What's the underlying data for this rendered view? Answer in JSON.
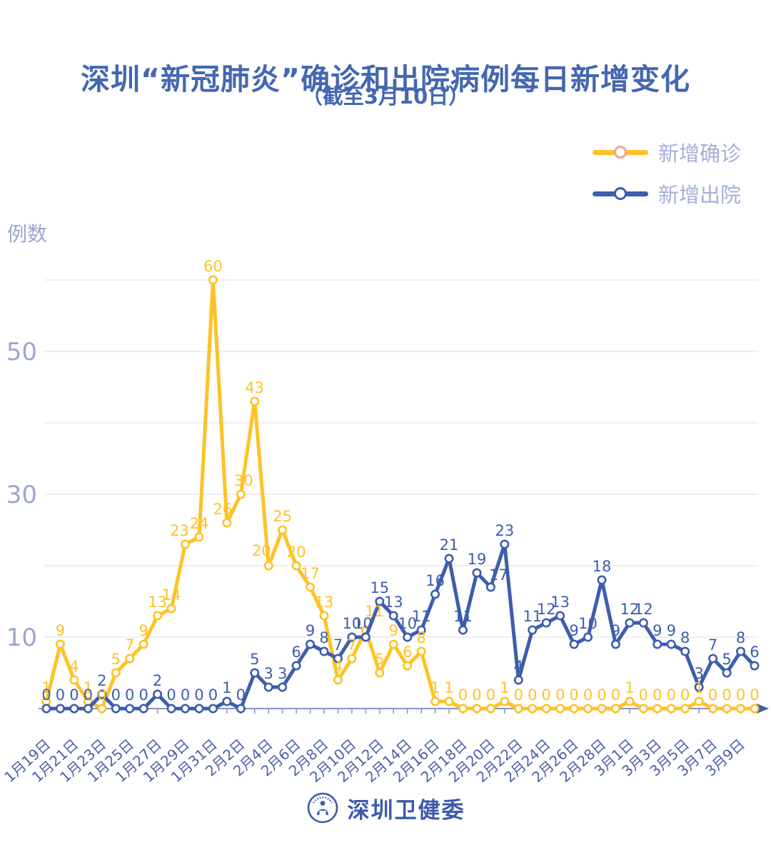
{
  "title": "深圳“新冠肺炎”确诊和出院病例每日新增变化",
  "subtitle": "（截至3月10日）",
  "y_axis_title": "例数",
  "legend": [
    {
      "label": "新增确诊",
      "line_color": "#FFC226",
      "marker_ring": "#F2A09A"
    },
    {
      "label": "新增出院",
      "line_color": "#3D5DAD",
      "marker_ring": "#3D5DAD"
    }
  ],
  "footer": {
    "brand": "深圳卫健委"
  },
  "colors": {
    "confirmed_yellow": "#FFC226",
    "discharged_blue": "#3D5DAD",
    "title_blue": "#4467B1",
    "axis_tick_label": "#9CA6CF",
    "date_label": "#4C5FA9",
    "legend_text": "#A5AFD9",
    "gridline": "#E4E5E9",
    "axis_line": "#8793C1"
  },
  "chart_data": {
    "type": "line",
    "x_range": [
      "1月19日",
      "3月10日"
    ],
    "x_tick_labels": [
      "1月19日",
      "1月21日",
      "1月23日",
      "1月25日",
      "1月27日",
      "1月29日",
      "1月31日",
      "2月2日",
      "2月4日",
      "2月6日",
      "2月8日",
      "2月10日",
      "2月12日",
      "2月14日",
      "2月16日",
      "2月18日",
      "2月20日",
      "2月22日",
      "2月24日",
      "2月26日",
      "2月28日",
      "3月1日",
      "3月3日",
      "3月5日",
      "3月7日",
      "3月9日"
    ],
    "y_ticks": [
      {
        "value": 10,
        "label": "10"
      },
      {
        "value": 30,
        "label": "30"
      },
      {
        "value": 50,
        "label": "50"
      }
    ],
    "gridlines": [
      10,
      20,
      30,
      40,
      50,
      60
    ],
    "ylim": [
      0,
      62
    ],
    "grid": true,
    "legend_position": "top-right",
    "point_labels_shown": true,
    "series": [
      {
        "name": "新增确诊",
        "color": "#FFC226",
        "values": [
          1,
          9,
          4,
          1,
          0,
          5,
          7,
          9,
          13,
          14,
          23,
          24,
          60,
          26,
          30,
          43,
          20,
          25,
          20,
          17,
          13,
          4,
          7,
          11,
          5,
          9,
          6,
          8,
          1,
          1,
          0,
          0,
          0,
          1,
          0,
          0,
          0,
          0,
          0,
          0,
          0,
          0,
          1,
          0,
          0,
          0,
          0,
          1,
          0,
          0,
          0,
          0
        ]
      },
      {
        "name": "新增出院",
        "color": "#3D5DAD",
        "values": [
          0,
          0,
          0,
          0,
          2,
          0,
          0,
          0,
          2,
          0,
          0,
          0,
          0,
          1,
          0,
          5,
          3,
          3,
          6,
          9,
          8,
          7,
          10,
          10,
          15,
          13,
          10,
          11,
          16,
          21,
          11,
          19,
          17,
          23,
          4,
          11,
          12,
          13,
          9,
          10,
          18,
          9,
          12,
          12,
          9,
          9,
          8,
          3,
          7,
          5,
          8,
          6
        ]
      }
    ]
  }
}
